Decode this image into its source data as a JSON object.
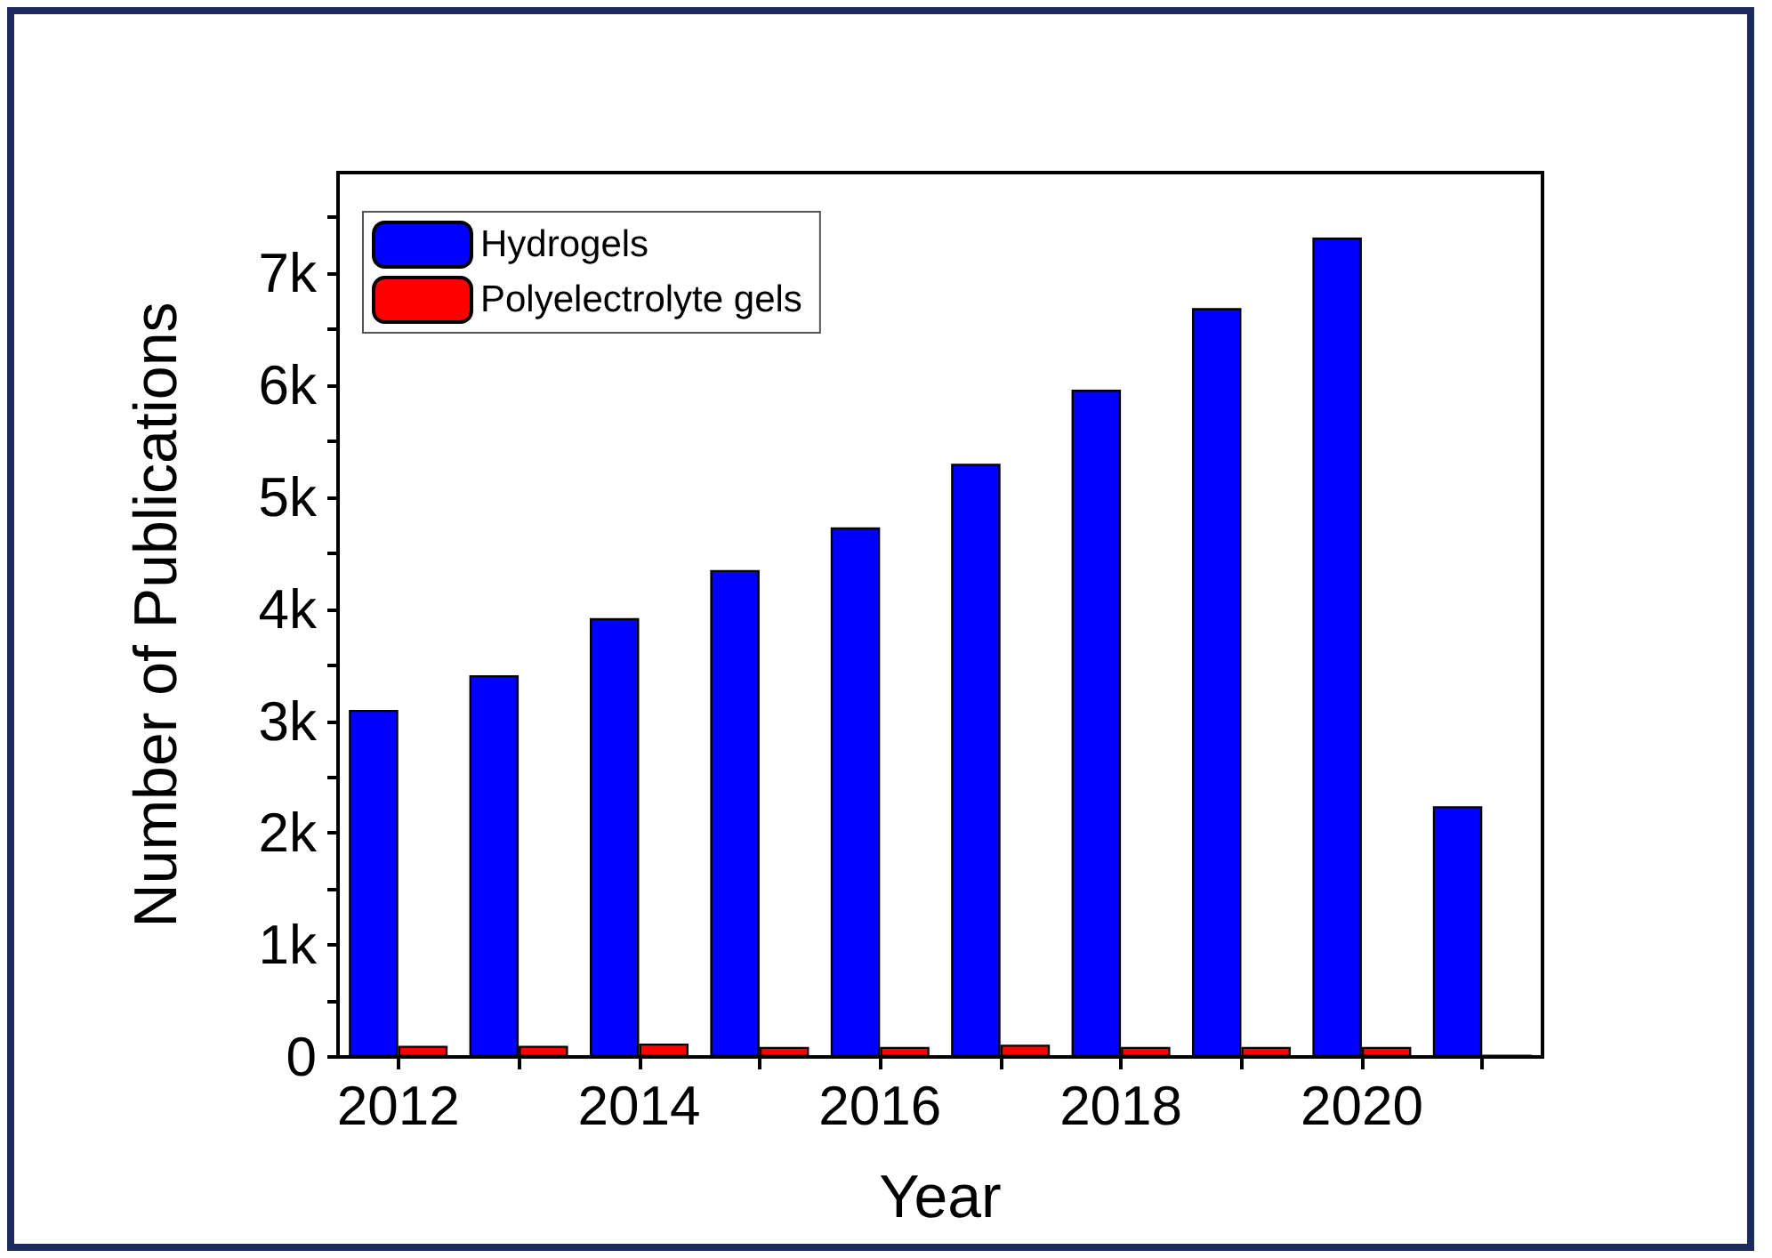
{
  "chart_data": {
    "type": "bar",
    "xlabel": "Year",
    "ylabel": "Number of Publications",
    "categories": [
      "2012",
      null,
      "2014",
      null,
      "2016",
      null,
      "2018",
      null,
      "2020",
      null
    ],
    "series": [
      {
        "name": "Hydrogels",
        "color": "#0000ff",
        "values": [
          3100,
          3410,
          3920,
          4350,
          4730,
          5300,
          5960,
          6690,
          7320,
          2240
        ]
      },
      {
        "name": "Polyelectrolyte gels",
        "color": "#ff0000",
        "values": [
          100,
          100,
          120,
          90,
          90,
          110,
          90,
          90,
          90,
          20
        ]
      }
    ],
    "ylim": [
      0,
      7900
    ],
    "yticks": [
      0,
      {
        "value": 500,
        "label": null
      },
      {
        "value": 1000,
        "label": "1k"
      },
      {
        "value": 1500,
        "label": null
      },
      {
        "value": 2000,
        "label": "2k"
      },
      {
        "value": 2500,
        "label": null
      },
      {
        "value": 3000,
        "label": "3k"
      },
      {
        "value": 3500,
        "label": null
      },
      {
        "value": 4000,
        "label": "4k"
      },
      {
        "value": 4500,
        "label": null
      },
      {
        "value": 5000,
        "label": "5k"
      },
      {
        "value": 5500,
        "label": null
      },
      {
        "value": 6000,
        "label": "6k"
      },
      {
        "value": 6500,
        "label": null
      },
      {
        "value": 7000,
        "label": "7k"
      },
      {
        "value": 7500,
        "label": null
      }
    ],
    "legend": "top left"
  }
}
